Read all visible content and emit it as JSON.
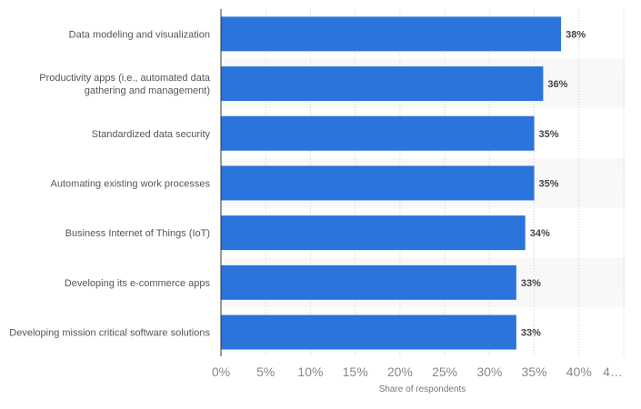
{
  "chart_data": {
    "type": "bar",
    "orientation": "horizontal",
    "categories": [
      [
        "Data modeling and visualization"
      ],
      [
        "Productivity apps (i.e., automated data",
        "gathering and management)"
      ],
      [
        "Standardized data security"
      ],
      [
        "Automating existing work processes"
      ],
      [
        "Business Internet of Things (IoT)"
      ],
      [
        "Developing its e-commerce apps"
      ],
      [
        "Developing mission critical software solutions"
      ]
    ],
    "values": [
      38,
      36,
      35,
      35,
      34,
      33,
      33
    ],
    "value_labels": [
      "38%",
      "36%",
      "35%",
      "35%",
      "34%",
      "33%",
      "33%"
    ],
    "x_ticks": [
      "0%",
      "5%",
      "10%",
      "15%",
      "20%",
      "25%",
      "30%",
      "35%",
      "40%",
      "4…"
    ],
    "xlabel": "Share of respondents",
    "ylabel": "",
    "xlim": [
      0,
      45
    ],
    "grid": "vertical dotted",
    "bar_color": "#2a74dc",
    "alt_row_color": "#f8f8f8"
  }
}
